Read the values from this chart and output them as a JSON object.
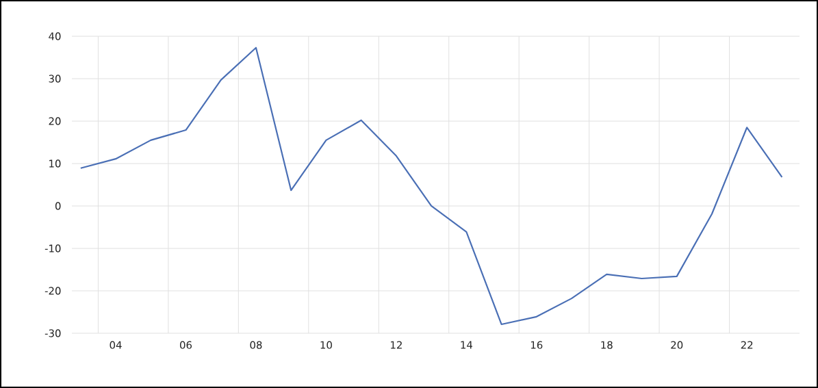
{
  "chart_data": {
    "type": "line",
    "categories": [
      null,
      "04",
      null,
      "06",
      null,
      "08",
      null,
      "10",
      null,
      "12",
      null,
      "14",
      null,
      "16",
      null,
      "18",
      null,
      "20",
      null,
      "22",
      null
    ],
    "values": [
      8.9,
      11.1,
      15.5,
      17.9,
      29.7,
      37.3,
      3.7,
      15.5,
      20.2,
      11.8,
      0,
      -6.1,
      -27.9,
      -26.1,
      -21.8,
      -16.1,
      -17.1,
      -16.6,
      -1.9,
      18.5,
      6.8
    ],
    "color": "#4a6fb5",
    "ylim": [
      -30,
      40
    ],
    "yticks": [
      -30,
      -20,
      -10,
      0,
      10,
      20,
      30,
      40
    ],
    "grid": true,
    "marker": "none",
    "line_style": "solid"
  }
}
